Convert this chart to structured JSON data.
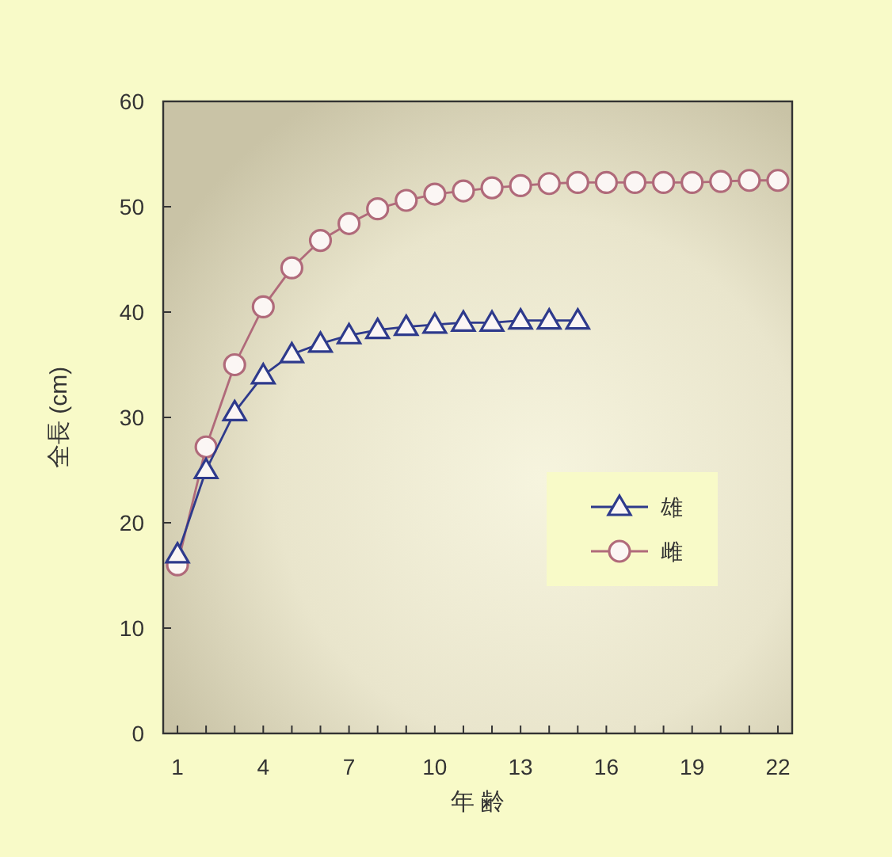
{
  "chart_data": {
    "type": "line",
    "xlabel": "年 齢",
    "ylabel": "全長 (cm)",
    "x": [
      1,
      2,
      3,
      4,
      5,
      6,
      7,
      8,
      9,
      10,
      11,
      12,
      13,
      14,
      15,
      16,
      17,
      18,
      19,
      20,
      21,
      22
    ],
    "series": [
      {
        "name": "雄",
        "color": "#2e3a8c",
        "marker": "triangle",
        "values": [
          17,
          25,
          30.5,
          34,
          36,
          37,
          37.8,
          38.3,
          38.6,
          38.8,
          39,
          39,
          39.2,
          39.2,
          39.2,
          null,
          null,
          null,
          null,
          null,
          null,
          null
        ]
      },
      {
        "name": "雌",
        "color": "#b06a7a",
        "marker": "circle",
        "values": [
          16,
          27.2,
          35,
          40.5,
          44.2,
          46.8,
          48.4,
          49.8,
          50.6,
          51.2,
          51.5,
          51.8,
          52,
          52.2,
          52.3,
          52.3,
          52.3,
          52.3,
          52.3,
          52.4,
          52.5,
          52.5
        ]
      }
    ],
    "xlim": [
      0.5,
      22.5
    ],
    "xticks": [
      1,
      {
        "value": 2,
        "label": null
      },
      {
        "value": 3,
        "label": null
      },
      4,
      {
        "value": 5,
        "label": null
      },
      {
        "value": 6,
        "label": null
      },
      7,
      {
        "value": 8,
        "label": null
      },
      {
        "value": 9,
        "label": null
      },
      10,
      {
        "value": 11,
        "label": null
      },
      {
        "value": 12,
        "label": null
      },
      13,
      {
        "value": 14,
        "label": null
      },
      {
        "value": 15,
        "label": null
      },
      16,
      {
        "value": 17,
        "label": null
      },
      {
        "value": 18,
        "label": null
      },
      19,
      {
        "value": 20,
        "label": null
      },
      {
        "value": 21,
        "label": null
      },
      22
    ],
    "ylim": [
      0,
      60
    ],
    "yticks": [
      0,
      10,
      20,
      30,
      40,
      50,
      60
    ],
    "grid": false,
    "legend": "right",
    "line_style": "solid"
  }
}
